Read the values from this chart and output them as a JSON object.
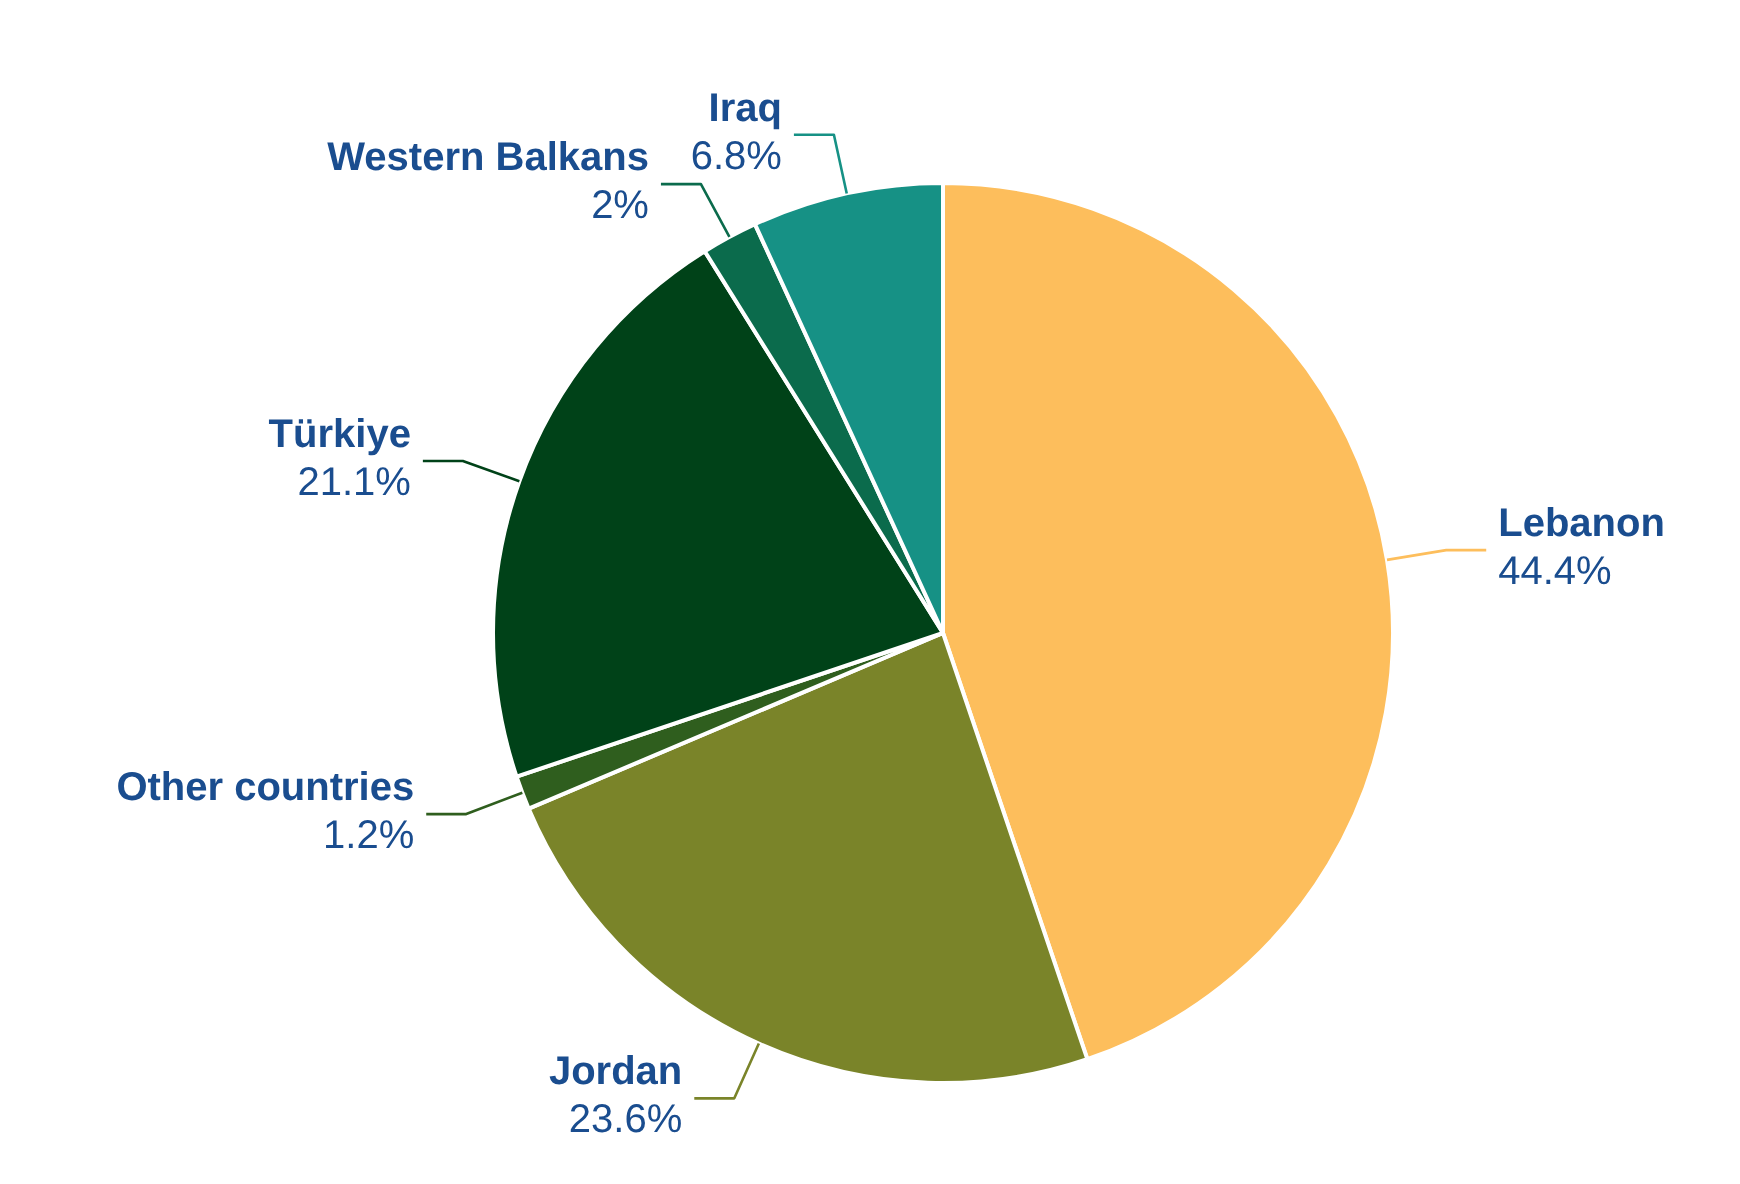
{
  "chart_data": {
    "type": "pie",
    "categories": [
      "Lebanon",
      "Jordan",
      "Other countries",
      "Türkiye",
      "Western Balkans",
      "Iraq"
    ],
    "values": [
      44.4,
      23.6,
      1.2,
      21.1,
      2,
      6.8
    ],
    "value_labels": [
      "44.4%",
      "23.6%",
      "1.2%",
      "21.1%",
      "2%",
      "6.8%"
    ],
    "colors": [
      "#fdbe5c",
      "#7a8429",
      "#2f5e1e",
      "#004218",
      "#0b6b4c",
      "#169185"
    ]
  }
}
